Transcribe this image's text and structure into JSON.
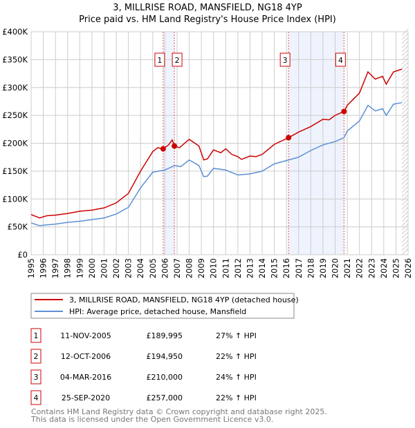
{
  "chart_data": {
    "type": "line",
    "title": "3, MILLRISE ROAD, MANSFIELD, NG18 4YP",
    "subtitle": "Price paid vs. HM Land Registry's House Price Index (HPI)",
    "ylim": [
      0,
      400000
    ],
    "xlim": [
      1995,
      2026
    ],
    "y_ticks": [
      {
        "v": 0,
        "label": "£0"
      },
      {
        "v": 50000,
        "label": "£50K"
      },
      {
        "v": 100000,
        "label": "£100K"
      },
      {
        "v": 150000,
        "label": "£150K"
      },
      {
        "v": 200000,
        "label": "£200K"
      },
      {
        "v": 250000,
        "label": "£250K"
      },
      {
        "v": 300000,
        "label": "£300K"
      },
      {
        "v": 350000,
        "label": "£350K"
      },
      {
        "v": 400000,
        "label": "£400K"
      }
    ],
    "x_ticks": [
      "1995",
      "1996",
      "1997",
      "1998",
      "1999",
      "2000",
      "2001",
      "2002",
      "2003",
      "2004",
      "2005",
      "2006",
      "2007",
      "2008",
      "2009",
      "2010",
      "2011",
      "2012",
      "2013",
      "2014",
      "2015",
      "2016",
      "2017",
      "2018",
      "2019",
      "2020",
      "2021",
      "2022",
      "2023",
      "2024",
      "2025",
      "2026"
    ],
    "grid": true,
    "series": [
      {
        "name": "3, MILLRISE ROAD, MANSFIELD, NG18 4YP (detached house)",
        "color": "#cc0000",
        "x": [
          1995,
          1995.7,
          1996,
          1996.3,
          1997,
          1998,
          1999,
          2000,
          2001,
          2002,
          2003,
          2004,
          2005,
          2005.4,
          2005.86,
          2006.3,
          2006.6,
          2006.78,
          2007.2,
          2008,
          2008.8,
          2009.2,
          2009.5,
          2010,
          2010.6,
          2011,
          2011.5,
          2012,
          2012.3,
          2013,
          2013.5,
          2014,
          2015,
          2016.17,
          2017,
          2018,
          2019,
          2019.5,
          2020,
          2020.73,
          2021,
          2022,
          2022.7,
          2023.3,
          2023.9,
          2024.2,
          2024.8,
          2025.5
        ],
        "y": [
          72000,
          66000,
          68000,
          70000,
          71000,
          74000,
          78000,
          80000,
          84000,
          93000,
          110000,
          150000,
          185000,
          192000,
          190000,
          197000,
          206000,
          195000,
          192000,
          207000,
          195000,
          170000,
          172000,
          188000,
          183000,
          190000,
          180000,
          176000,
          171000,
          177000,
          176000,
          180000,
          198000,
          210000,
          220000,
          230000,
          243000,
          242000,
          250000,
          257000,
          268000,
          290000,
          328000,
          315000,
          320000,
          306000,
          328000,
          333000
        ]
      },
      {
        "name": "HPI: Average price, detached house, Mansfield",
        "color": "#5b8fd4",
        "x": [
          1995,
          1995.7,
          1996,
          1997,
          1998,
          1999,
          2000,
          2001,
          2002,
          2003,
          2004,
          2005,
          2006,
          2006.8,
          2007.3,
          2008,
          2008.8,
          2009.2,
          2009.5,
          2010,
          2011,
          2012,
          2013,
          2014,
          2015,
          2016.17,
          2017,
          2018,
          2019,
          2020,
          2020.73,
          2021,
          2022,
          2022.7,
          2023.3,
          2023.9,
          2024.2,
          2024.8,
          2025.5
        ],
        "y": [
          57000,
          52000,
          53000,
          55000,
          58000,
          60000,
          63000,
          66000,
          73000,
          85000,
          120000,
          148000,
          152000,
          160000,
          158000,
          170000,
          160000,
          140000,
          141000,
          155000,
          152000,
          143000,
          145000,
          150000,
          163000,
          170000,
          175000,
          187000,
          197000,
          203000,
          210000,
          222000,
          240000,
          268000,
          258000,
          262000,
          250000,
          270000,
          273000
        ]
      }
    ],
    "transactions": [
      {
        "n": "1",
        "date": "11-NOV-2005",
        "x": 2005.86,
        "price": "£189,995",
        "price_value": 189995,
        "hpi": "27% ↑ HPI"
      },
      {
        "n": "2",
        "date": "12-OCT-2006",
        "x": 2006.78,
        "price": "£194,950",
        "price_value": 194950,
        "hpi": "22% ↑ HPI"
      },
      {
        "n": "3",
        "date": "04-MAR-2016",
        "x": 2016.17,
        "price": "£210,000",
        "price_value": 210000,
        "hpi": "24% ↑ HPI"
      },
      {
        "n": "4",
        "date": "25-SEP-2020",
        "x": 2020.73,
        "price": "£257,000",
        "price_value": 257000,
        "hpi": "22% ↑ HPI"
      }
    ],
    "data_end": 2025.5,
    "legend": "below"
  },
  "footer": {
    "line1": "Contains HM Land Registry data © Crown copyright and database right 2025.",
    "line2": "This data is licensed under the Open Government Licence v3.0."
  }
}
